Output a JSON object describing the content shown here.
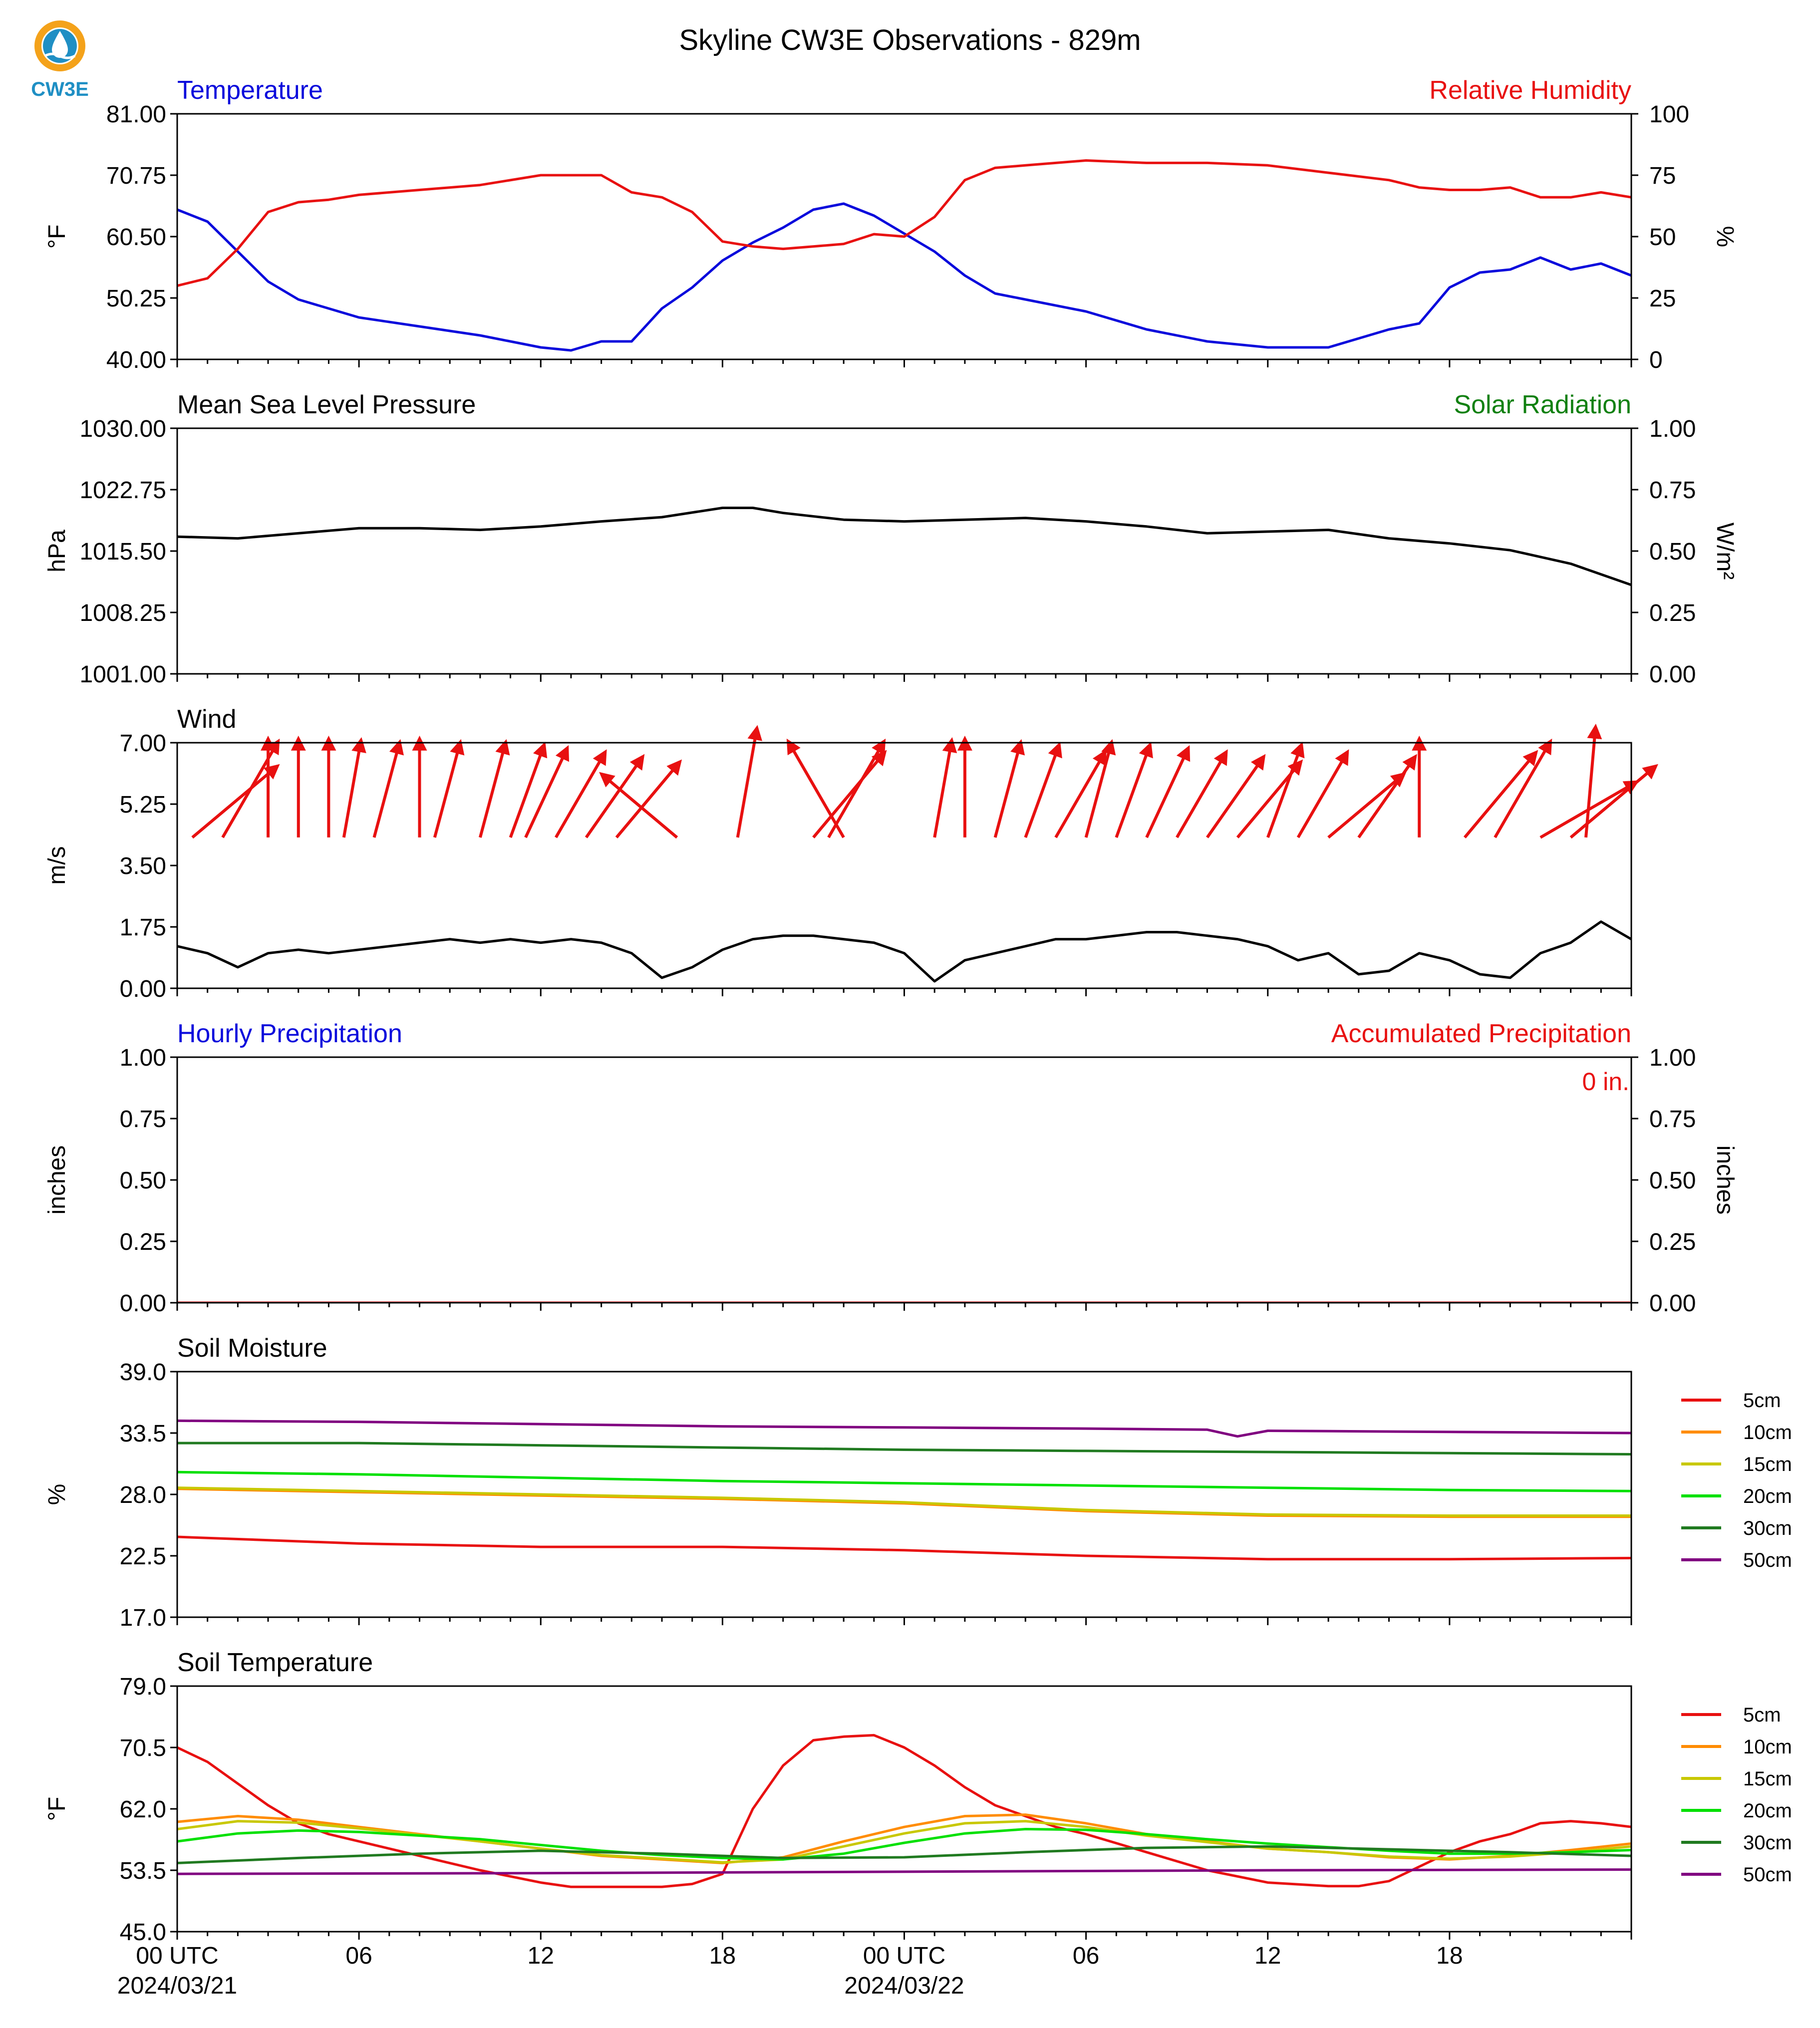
{
  "title": "Skyline CW3E Observations - 829m",
  "logo": {
    "text": "CW3E",
    "ring_color": "#f4a21a",
    "accent_color": "#1f8fc4"
  },
  "colors": {
    "blue": "#0a0adc",
    "red": "#e81010",
    "green": "#108010",
    "black": "#000000",
    "purple": "#800080"
  },
  "x_axis": {
    "tick_labels": [
      "00 UTC",
      "06",
      "12",
      "18",
      "00 UTC",
      "06",
      "12",
      "18"
    ],
    "date_labels": [
      "2024/03/21",
      "2024/03/22"
    ]
  },
  "chart_data": [
    {
      "type": "line",
      "left_title": "Temperature",
      "right_title": "Relative Humidity",
      "left_color": "#0a0adc",
      "right_color": "#e81010",
      "ylabel": "°F",
      "ylabel_right": "%",
      "ylim": [
        40,
        81
      ],
      "yticks": [
        "81.00",
        "70.75",
        "60.50",
        "50.25",
        "40.00"
      ],
      "ylim_right": [
        0,
        100
      ],
      "yticks_right": [
        "100",
        "75",
        "50",
        "25",
        "0"
      ],
      "x_unit": "hours since 2024/03/21 00 UTC",
      "series": [
        {
          "name": "Temperature",
          "axis": "left",
          "color": "#0a0adc",
          "x": [
            0,
            1,
            2,
            3,
            4,
            5,
            6,
            8,
            10,
            11,
            12,
            13,
            14,
            15,
            16,
            17,
            18,
            19,
            20,
            21,
            22,
            23,
            24,
            25,
            26,
            27,
            28,
            30,
            32,
            34,
            36,
            38,
            40,
            41,
            42,
            43,
            44,
            45,
            46,
            47,
            48
          ],
          "y": [
            65,
            63,
            58,
            53,
            50,
            48.5,
            47,
            45.5,
            44,
            43,
            42,
            41.5,
            43,
            43,
            48.5,
            52,
            56.5,
            59.5,
            62,
            65,
            66,
            64,
            61,
            58,
            54,
            51,
            50,
            48,
            45,
            43,
            42,
            42,
            45,
            46,
            52,
            54.5,
            55,
            57,
            55,
            56,
            54
          ]
        },
        {
          "name": "Relative Humidity",
          "axis": "right",
          "color": "#e81010",
          "x": [
            0,
            1,
            2,
            3,
            4,
            5,
            6,
            8,
            10,
            12,
            14,
            15,
            16,
            17,
            18,
            19,
            20,
            21,
            22,
            23,
            24,
            25,
            26,
            27,
            28,
            30,
            32,
            34,
            36,
            38,
            40,
            41,
            42,
            43,
            44,
            45,
            46,
            47,
            48
          ],
          "y": [
            30,
            33,
            45,
            60,
            64,
            65,
            67,
            69,
            71,
            75,
            75,
            68,
            66,
            60,
            48,
            46,
            45,
            46,
            47,
            51,
            50,
            58,
            73,
            78,
            79,
            81,
            80,
            80,
            79,
            76,
            73,
            70,
            69,
            69,
            70,
            66,
            66,
            68,
            66
          ]
        }
      ]
    },
    {
      "type": "line",
      "left_title": "Mean Sea Level Pressure",
      "right_title": "Solar Radiation",
      "left_color": "#000000",
      "right_color": "#108010",
      "ylabel": "hPa",
      "ylabel_right": "W/m²",
      "ylim": [
        1001,
        1030
      ],
      "yticks": [
        "1030.00",
        "1022.75",
        "1015.50",
        "1008.25",
        "1001.00"
      ],
      "ylim_right": [
        0,
        1
      ],
      "yticks_right": [
        "1.00",
        "0.75",
        "0.50",
        "0.25",
        "0.00"
      ],
      "x_unit": "hours since 2024/03/21 00 UTC",
      "series": [
        {
          "name": "Mean Sea Level Pressure",
          "axis": "left",
          "color": "#000000",
          "x": [
            0,
            2,
            4,
            6,
            8,
            10,
            12,
            14,
            16,
            18,
            19,
            20,
            22,
            24,
            26,
            28,
            30,
            32,
            34,
            36,
            38,
            40,
            42,
            44,
            46,
            48
          ],
          "y": [
            1017.2,
            1017.0,
            1017.6,
            1018.2,
            1018.2,
            1018.0,
            1018.4,
            1019.0,
            1019.5,
            1020.6,
            1020.6,
            1020.0,
            1019.2,
            1019.0,
            1019.2,
            1019.4,
            1019.0,
            1018.4,
            1017.6,
            1017.8,
            1018.0,
            1017.0,
            1016.4,
            1015.6,
            1014.0,
            1011.5
          ]
        }
      ]
    },
    {
      "type": "line",
      "left_title": "Wind",
      "left_color": "#000000",
      "ylabel": "m/s",
      "ylim": [
        0,
        7
      ],
      "yticks": [
        "7.00",
        "5.25",
        "3.50",
        "1.75",
        "0.00"
      ],
      "x_unit": "hours since 2024/03/21 00 UTC",
      "series": [
        {
          "name": "Wind Speed",
          "axis": "left",
          "color": "#000000",
          "x": [
            0,
            1,
            2,
            3,
            4,
            5,
            6,
            7,
            8,
            9,
            10,
            11,
            12,
            13,
            14,
            15,
            16,
            17,
            18,
            19,
            20,
            21,
            22,
            23,
            24,
            25,
            26,
            27,
            28,
            29,
            30,
            31,
            32,
            33,
            34,
            35,
            36,
            37,
            38,
            39,
            40,
            41,
            42,
            43,
            44,
            45,
            46,
            47,
            48
          ],
          "y": [
            1.2,
            1.0,
            0.6,
            1.0,
            1.1,
            1.0,
            1.1,
            1.2,
            1.3,
            1.4,
            1.3,
            1.4,
            1.3,
            1.4,
            1.3,
            1.0,
            0.3,
            0.6,
            1.1,
            1.4,
            1.5,
            1.5,
            1.4,
            1.3,
            1.0,
            0.2,
            0.8,
            1.0,
            1.2,
            1.4,
            1.4,
            1.5,
            1.6,
            1.6,
            1.5,
            1.4,
            1.2,
            0.8,
            1.0,
            0.4,
            0.5,
            1.0,
            0.8,
            0.4,
            0.3,
            1.0,
            1.3,
            1.9,
            1.4
          ]
        }
      ],
      "wind_barbs": {
        "color": "#e81010",
        "x": [
          0.5,
          1.5,
          3,
          4,
          5,
          5.5,
          6.5,
          8,
          8.5,
          10,
          11,
          11.5,
          12.5,
          13.5,
          14.5,
          16.5,
          18.5,
          21,
          21.5,
          22,
          25,
          26,
          27,
          28,
          29,
          30,
          31,
          32,
          33,
          34,
          35,
          36,
          37,
          38,
          39,
          41,
          42.5,
          43.5,
          45,
          46,
          46.5
        ],
        "speed": [
          4.5,
          4.5,
          4.0,
          4.0,
          4.0,
          4.0,
          4.0,
          4.0,
          4.0,
          4.0,
          4.0,
          4.0,
          4.0,
          4.0,
          4.0,
          4.0,
          4.5,
          4.5,
          4.5,
          4.5,
          4.0,
          4.0,
          4.0,
          4.0,
          4.0,
          4.0,
          4.0,
          4.0,
          4.0,
          4.0,
          4.0,
          4.0,
          4.0,
          4.0,
          4.0,
          4.0,
          4.5,
          4.5,
          4.5,
          4.5,
          4.5
        ],
        "direction": [
          230,
          210,
          180,
          180,
          180,
          190,
          195,
          180,
          195,
          195,
          200,
          205,
          210,
          215,
          220,
          130,
          190,
          220,
          210,
          150,
          190,
          180,
          195,
          200,
          210,
          195,
          200,
          205,
          210,
          215,
          220,
          200,
          210,
          230,
          215,
          180,
          220,
          210,
          240,
          230,
          185
        ]
      }
    },
    {
      "type": "line",
      "left_title": "Hourly Precipitation",
      "right_title": "Accumulated Precipitation",
      "left_color": "#0a0adc",
      "right_color": "#e81010",
      "ylabel": "inches",
      "ylabel_right": "inches",
      "ylim": [
        0,
        1
      ],
      "yticks": [
        "1.00",
        "0.75",
        "0.50",
        "0.25",
        "0.00"
      ],
      "ylim_right": [
        0,
        1
      ],
      "yticks_right": [
        "1.00",
        "0.75",
        "0.50",
        "0.25",
        "0.00"
      ],
      "annotation": "0 in.",
      "x_unit": "hours since 2024/03/21 00 UTC",
      "series": [
        {
          "name": "Accumulated Precipitation",
          "axis": "right",
          "color": "#e81010",
          "x": [
            0,
            48
          ],
          "y": [
            0,
            0
          ]
        }
      ]
    },
    {
      "type": "line",
      "left_title": "Soil Moisture",
      "left_color": "#000000",
      "ylabel": "%",
      "ylim": [
        17,
        39
      ],
      "yticks": [
        "39.0",
        "33.5",
        "28.0",
        "22.5",
        "17.0"
      ],
      "legend": "right",
      "x_unit": "hours since 2024/03/21 00 UTC",
      "series": [
        {
          "name": "5cm",
          "color": "#e81010",
          "x": [
            0,
            6,
            12,
            18,
            24,
            30,
            36,
            42,
            48
          ],
          "y": [
            24.2,
            23.6,
            23.3,
            23.3,
            23.0,
            22.5,
            22.2,
            22.2,
            22.3
          ]
        },
        {
          "name": "10cm",
          "color": "#ff8c00",
          "x": [
            0,
            6,
            12,
            18,
            24,
            30,
            36,
            42,
            48
          ],
          "y": [
            28.5,
            28.2,
            27.9,
            27.6,
            27.2,
            26.5,
            26.1,
            26.0,
            26.0
          ]
        },
        {
          "name": "15cm",
          "color": "#c8c800",
          "x": [
            0,
            6,
            12,
            18,
            24,
            30,
            36,
            42,
            48
          ],
          "y": [
            28.6,
            28.3,
            28.0,
            27.7,
            27.3,
            26.6,
            26.2,
            26.1,
            26.1
          ]
        },
        {
          "name": "20cm",
          "color": "#00e000",
          "x": [
            0,
            6,
            12,
            18,
            24,
            30,
            36,
            42,
            48
          ],
          "y": [
            30.0,
            29.8,
            29.5,
            29.2,
            29.0,
            28.8,
            28.6,
            28.4,
            28.3
          ]
        },
        {
          "name": "30cm",
          "color": "#207a20",
          "x": [
            0,
            6,
            12,
            18,
            24,
            30,
            36,
            42,
            48
          ],
          "y": [
            32.6,
            32.6,
            32.4,
            32.2,
            32.0,
            31.9,
            31.8,
            31.7,
            31.6
          ]
        },
        {
          "name": "50cm",
          "color": "#800080",
          "x": [
            0,
            6,
            12,
            18,
            24,
            30,
            34,
            35,
            36,
            42,
            48
          ],
          "y": [
            34.6,
            34.5,
            34.3,
            34.1,
            34.0,
            33.9,
            33.8,
            33.2,
            33.7,
            33.6,
            33.5
          ]
        }
      ]
    },
    {
      "type": "line",
      "left_title": "Soil Temperature",
      "left_color": "#000000",
      "ylabel": "°F",
      "ylim": [
        45,
        79
      ],
      "yticks": [
        "79.0",
        "70.5",
        "62.0",
        "53.5",
        "45.0"
      ],
      "legend": "right",
      "x_unit": "hours since 2024/03/21 00 UTC",
      "series": [
        {
          "name": "5cm",
          "color": "#e81010",
          "x": [
            0,
            1,
            2,
            3,
            4,
            5,
            6,
            8,
            10,
            12,
            13,
            14,
            16,
            17,
            18,
            19,
            20,
            21,
            22,
            23,
            24,
            25,
            26,
            27,
            28,
            29,
            30,
            32,
            34,
            36,
            38,
            39,
            40,
            41,
            42,
            43,
            44,
            45,
            46,
            47,
            48
          ],
          "y": [
            70.5,
            68.5,
            65.5,
            62.5,
            60,
            58.5,
            57.5,
            55.5,
            53.5,
            51.8,
            51.2,
            51.2,
            51.2,
            51.6,
            53,
            62,
            68,
            71.5,
            72,
            72.2,
            70.5,
            68,
            65,
            62.5,
            61,
            59.5,
            58.5,
            56,
            53.5,
            51.8,
            51.3,
            51.3,
            52,
            54,
            56,
            57.5,
            58.5,
            60,
            60.3,
            60,
            59.5
          ]
        },
        {
          "name": "10cm",
          "color": "#ff8c00",
          "x": [
            0,
            2,
            4,
            6,
            8,
            10,
            12,
            14,
            16,
            18,
            20,
            22,
            24,
            26,
            28,
            30,
            32,
            34,
            36,
            38,
            40,
            42,
            44,
            46,
            48
          ],
          "y": [
            60.2,
            61,
            60.5,
            59.5,
            58.5,
            57.5,
            56.5,
            55.5,
            55,
            54.5,
            55.3,
            57.5,
            59.5,
            61,
            61.2,
            60,
            58.5,
            57.5,
            56.5,
            56,
            55.3,
            55,
            55.5,
            56.3,
            57.2
          ]
        },
        {
          "name": "15cm",
          "color": "#c8c800",
          "x": [
            0,
            2,
            4,
            6,
            8,
            10,
            12,
            14,
            16,
            18,
            20,
            22,
            24,
            26,
            28,
            30,
            32,
            34,
            36,
            38,
            40,
            42,
            44,
            46,
            48
          ],
          "y": [
            59.2,
            60.3,
            60.1,
            59.3,
            58.4,
            57.5,
            56.5,
            55.6,
            55.1,
            54.6,
            55,
            56.8,
            58.6,
            60,
            60.3,
            59.5,
            58.3,
            57.4,
            56.5,
            56,
            55.4,
            55.1,
            55.4,
            56,
            56.8
          ]
        },
        {
          "name": "20cm",
          "color": "#00e000",
          "x": [
            0,
            2,
            4,
            6,
            8,
            10,
            12,
            14,
            16,
            18,
            20,
            22,
            24,
            26,
            28,
            30,
            32,
            34,
            36,
            38,
            40,
            42,
            44,
            46,
            48
          ],
          "y": [
            57.5,
            58.6,
            59,
            58.8,
            58.3,
            57.8,
            57,
            56.2,
            55.6,
            55.2,
            55,
            55.8,
            57.3,
            58.6,
            59.2,
            59.1,
            58.5,
            57.8,
            57.2,
            56.7,
            56.2,
            55.8,
            55.8,
            56,
            56.3
          ]
        },
        {
          "name": "30cm",
          "color": "#207a20",
          "x": [
            0,
            4,
            8,
            12,
            16,
            20,
            24,
            28,
            32,
            36,
            40,
            44,
            48
          ],
          "y": [
            54.5,
            55.2,
            55.8,
            56.2,
            55.8,
            55.2,
            55.3,
            56,
            56.6,
            56.8,
            56.4,
            56,
            55.5
          ]
        },
        {
          "name": "50cm",
          "color": "#800080",
          "x": [
            0,
            12,
            24,
            36,
            48
          ],
          "y": [
            53.0,
            53.1,
            53.3,
            53.5,
            53.6
          ]
        }
      ]
    }
  ]
}
